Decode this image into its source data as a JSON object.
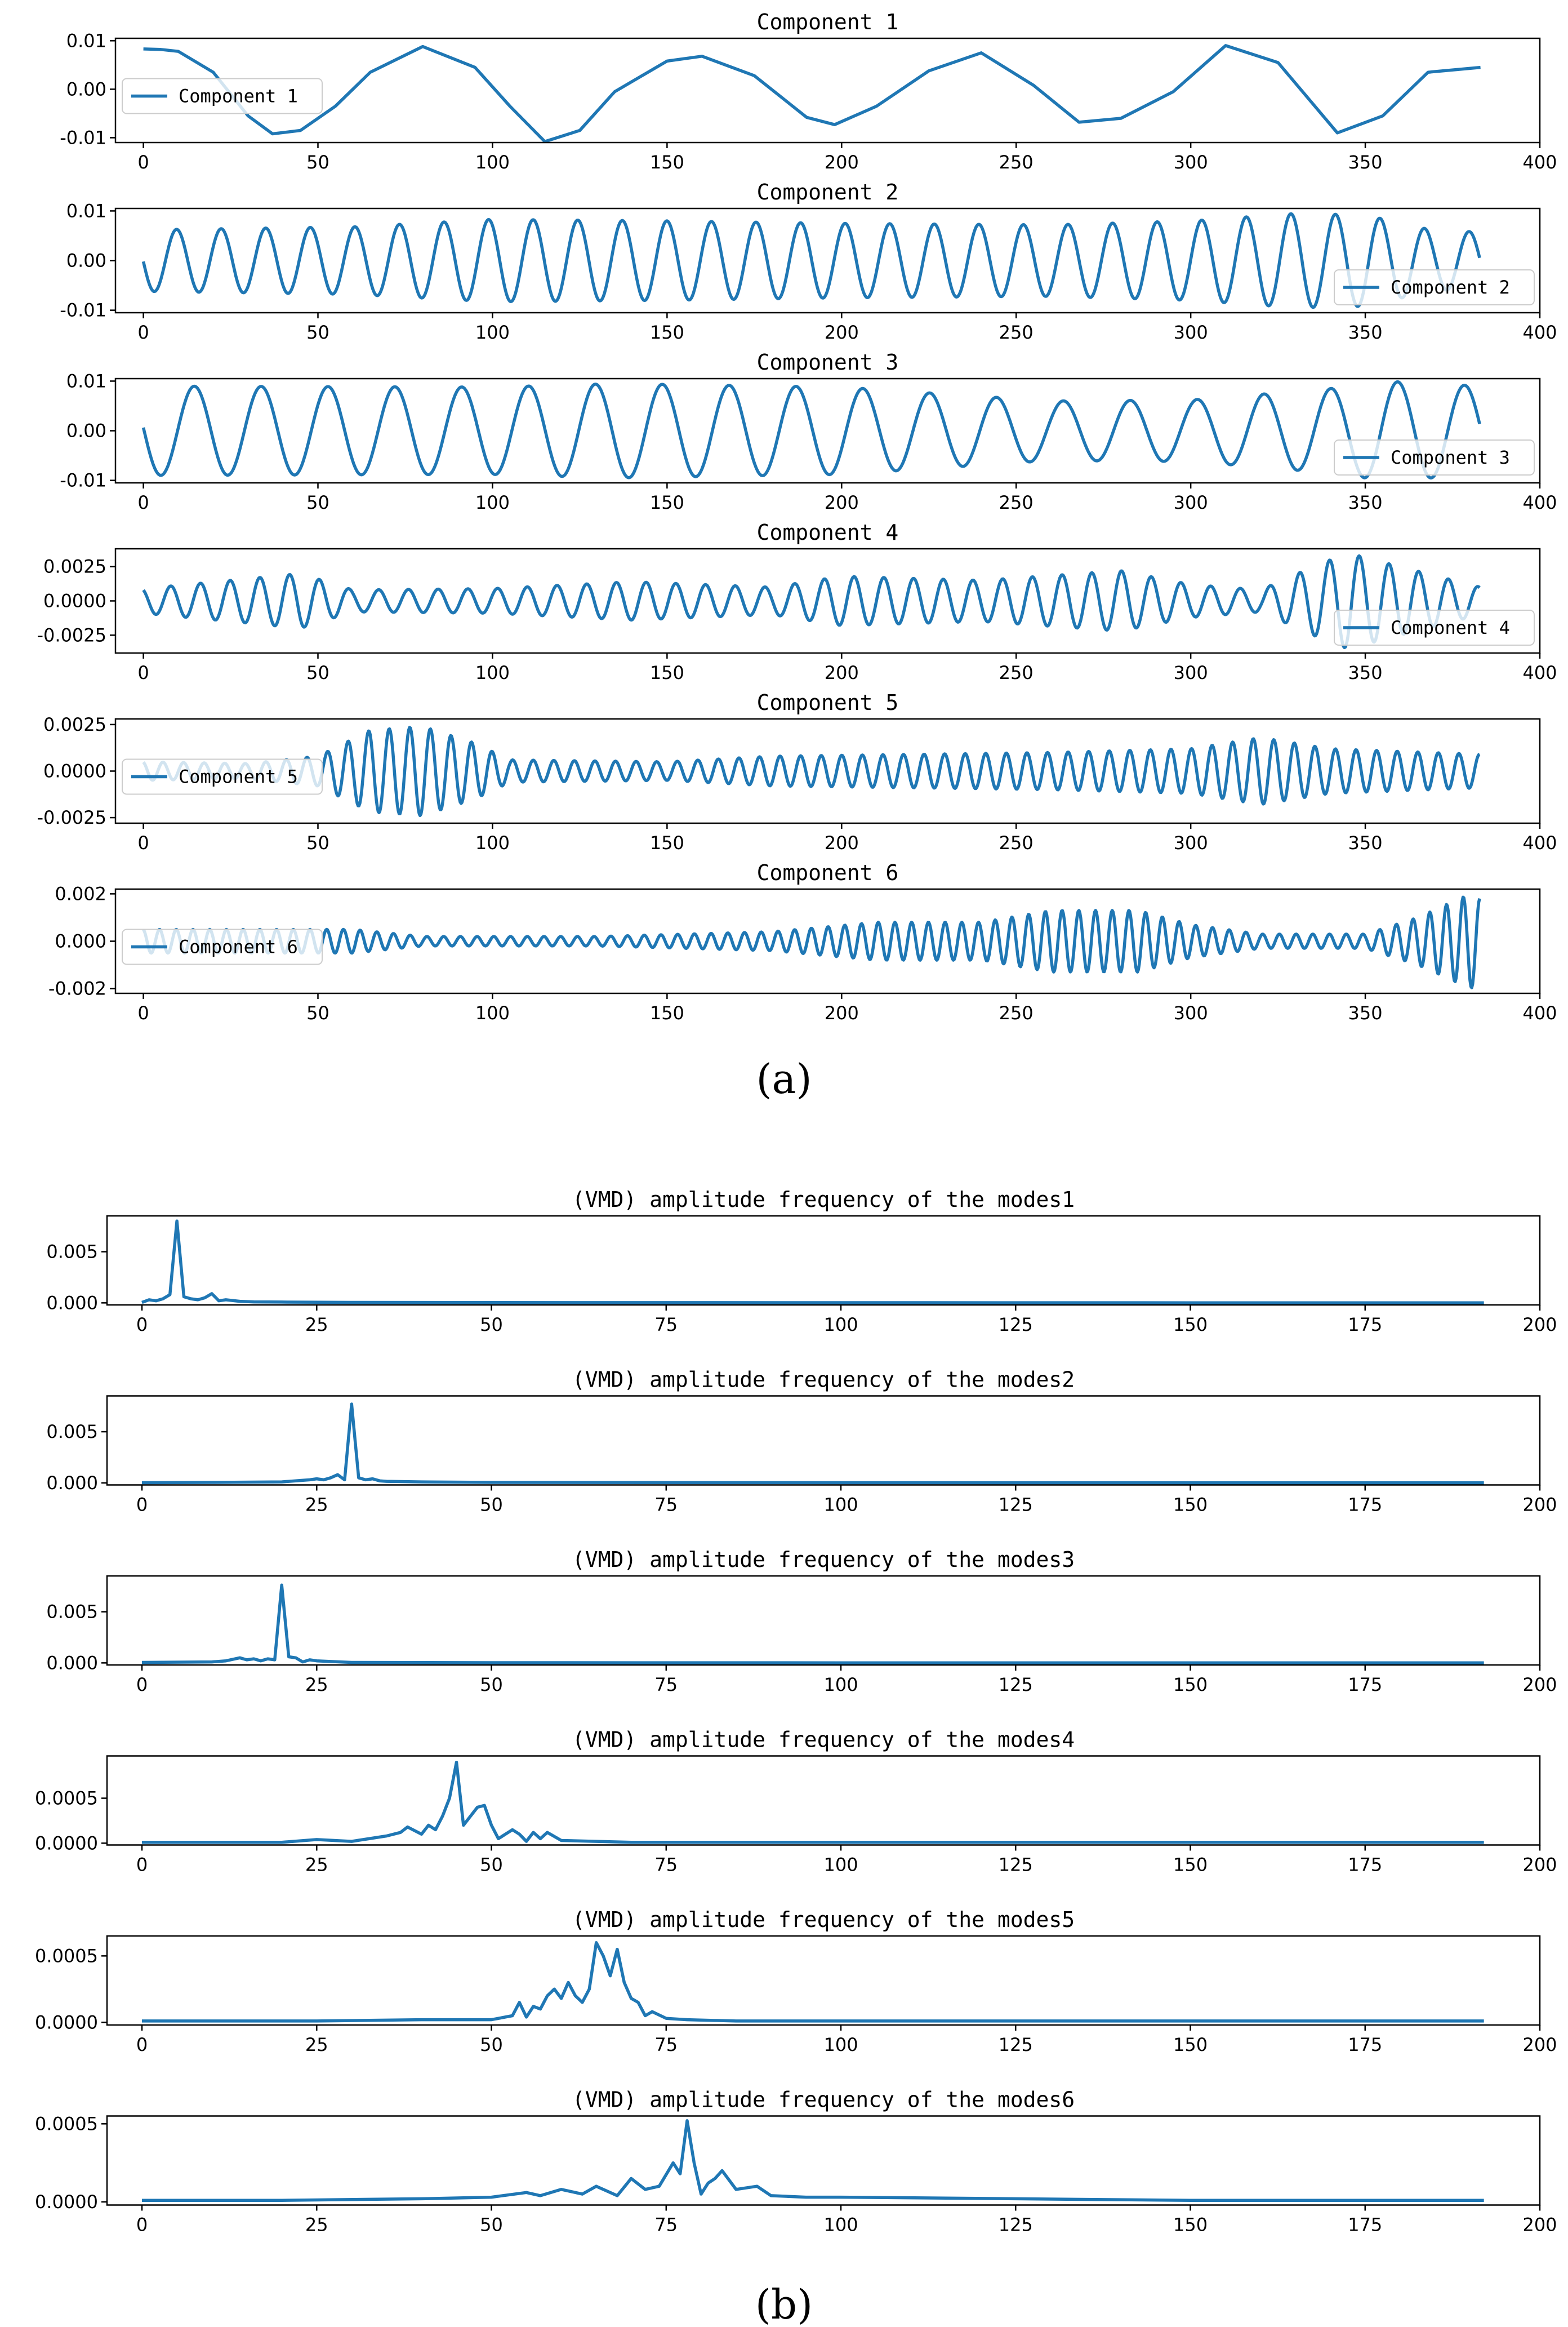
{
  "figure": {
    "label_a": "(a)",
    "label_b": "(b)"
  },
  "colors": {
    "line": "#1f77b4",
    "axis": "#000000"
  },
  "chart_data": [
    {
      "type": "line",
      "group": "a",
      "title": "Component 1",
      "legend": "Component 1",
      "legend_loc": "left",
      "xlim": [
        -8,
        400
      ],
      "ylim": [
        -0.011,
        0.0105
      ],
      "xticks": [
        0,
        50,
        100,
        150,
        200,
        250,
        300,
        350,
        400
      ],
      "xtick_labels": [
        "0",
        "50",
        "100",
        "150",
        "200",
        "250",
        "300",
        "350",
        "400"
      ],
      "yticks": [
        0.01,
        0.0,
        -0.01
      ],
      "ytick_labels": [
        "0.01",
        "0.00",
        "-0.01"
      ],
      "x": [
        0,
        5,
        10,
        20,
        30,
        37,
        45,
        55,
        65,
        80,
        95,
        105,
        115,
        125,
        135,
        150,
        160,
        175,
        190,
        198,
        210,
        225,
        240,
        255,
        268,
        280,
        295,
        310,
        325,
        342,
        355,
        368,
        383
      ],
      "y": [
        0.0083,
        0.0082,
        0.0078,
        0.0035,
        -0.0055,
        -0.0092,
        -0.0085,
        -0.0035,
        0.0035,
        0.0088,
        0.0045,
        -0.0035,
        -0.0108,
        -0.0085,
        -0.0005,
        0.0058,
        0.0068,
        0.0028,
        -0.0058,
        -0.0073,
        -0.0035,
        0.0038,
        0.0075,
        0.0008,
        -0.0068,
        -0.006,
        -0.0005,
        0.009,
        0.0055,
        -0.009,
        -0.0055,
        0.0035,
        0.0045
      ]
    },
    {
      "type": "line",
      "group": "a",
      "title": "Component 2",
      "legend": "Component 2",
      "legend_loc": "right",
      "xlim": [
        -8,
        400
      ],
      "ylim": [
        -0.0105,
        0.0105
      ],
      "xticks": [
        0,
        50,
        100,
        150,
        200,
        250,
        300,
        350,
        400
      ],
      "xtick_labels": [
        "0",
        "50",
        "100",
        "150",
        "200",
        "250",
        "300",
        "350",
        "400"
      ],
      "yticks": [
        0.01,
        0.0,
        -0.01
      ],
      "ytick_labels": [
        "0.01",
        "0.00",
        "-0.01"
      ],
      "signal": {
        "n": 383,
        "components": [
          {
            "freq": 30,
            "phase": 1.6,
            "amp_env": [
              [
                0,
                0.0062
              ],
              [
                60,
                0.0068
              ],
              [
                100,
                0.0083
              ],
              [
                150,
                0.008
              ],
              [
                200,
                0.0075
              ],
              [
                260,
                0.0072
              ],
              [
                300,
                0.008
              ],
              [
                330,
                0.0095
              ],
              [
                350,
                0.0092
              ],
              [
                370,
                0.006
              ],
              [
                383,
                0.0058
              ]
            ]
          }
        ]
      }
    },
    {
      "type": "line",
      "group": "a",
      "title": "Component 3",
      "legend": "Component 3",
      "legend_loc": "right",
      "xlim": [
        -8,
        400
      ],
      "ylim": [
        -0.0105,
        0.0105
      ],
      "xticks": [
        0,
        50,
        100,
        150,
        200,
        250,
        300,
        350,
        400
      ],
      "xtick_labels": [
        "0",
        "50",
        "100",
        "150",
        "200",
        "250",
        "300",
        "350",
        "400"
      ],
      "yticks": [
        0.01,
        0.0,
        -0.01
      ],
      "ytick_labels": [
        "0.01",
        "0.00",
        "-0.01"
      ],
      "signal": {
        "n": 383,
        "components": [
          {
            "freq": 20,
            "phase": 1.5,
            "amp_env": [
              [
                0,
                0.009
              ],
              [
                100,
                0.0088
              ],
              [
                135,
                0.0095
              ],
              [
                200,
                0.0088
              ],
              [
                260,
                0.006
              ],
              [
                300,
                0.0062
              ],
              [
                340,
                0.0085
              ],
              [
                355,
                0.01
              ],
              [
                383,
                0.009
              ]
            ]
          }
        ]
      }
    },
    {
      "type": "line",
      "group": "a",
      "title": "Component 4",
      "legend": "Component 4",
      "legend_loc": "right",
      "xlim": [
        -8,
        400
      ],
      "ylim": [
        -0.0038,
        0.0038
      ],
      "xticks": [
        0,
        50,
        100,
        150,
        200,
        250,
        300,
        350,
        400
      ],
      "xtick_labels": [
        "0",
        "50",
        "100",
        "150",
        "200",
        "250",
        "300",
        "350",
        "400"
      ],
      "yticks": [
        0.0025,
        0.0,
        -0.0025
      ],
      "ytick_labels": [
        "0.0025",
        "0.0000",
        "-0.0025"
      ],
      "signal": {
        "n": 383,
        "components": [
          {
            "freq": 45,
            "phase": 0.5,
            "amp_env": [
              [
                0,
                0.0009
              ],
              [
                25,
                0.0015
              ],
              [
                45,
                0.002
              ],
              [
                60,
                0.0008
              ],
              [
                100,
                0.0009
              ],
              [
                140,
                0.0014
              ],
              [
                180,
                0.001
              ],
              [
                200,
                0.0018
              ],
              [
                240,
                0.0015
              ],
              [
                280,
                0.0022
              ],
              [
                300,
                0.0012
              ],
              [
                320,
                0.0008
              ],
              [
                335,
                0.0025
              ],
              [
                345,
                0.0035
              ],
              [
                360,
                0.0025
              ],
              [
                383,
                0.001
              ]
            ]
          }
        ]
      }
    },
    {
      "type": "line",
      "group": "a",
      "title": "Component 5",
      "legend": "Component 5",
      "legend_loc": "left",
      "xlim": [
        -8,
        400
      ],
      "ylim": [
        -0.0028,
        0.0028
      ],
      "xticks": [
        0,
        50,
        100,
        150,
        200,
        250,
        300,
        350,
        400
      ],
      "xtick_labels": [
        "0",
        "50",
        "100",
        "150",
        "200",
        "250",
        "300",
        "350",
        "400"
      ],
      "yticks": [
        0.0025,
        0.0,
        -0.0025
      ],
      "ytick_labels": [
        "0.0025",
        "0.0000",
        "-0.0025"
      ],
      "signal": {
        "n": 383,
        "components": [
          {
            "freq": 65,
            "phase": 0.3,
            "amp_env": [
              [
                0,
                0.0005
              ],
              [
                30,
                0.0004
              ],
              [
                50,
                0.0008
              ],
              [
                65,
                0.0022
              ],
              [
                80,
                0.0024
              ],
              [
                95,
                0.0015
              ],
              [
                105,
                0.0006
              ],
              [
                150,
                0.0005
              ],
              [
                180,
                0.0008
              ],
              [
                220,
                0.0009
              ],
              [
                260,
                0.001
              ],
              [
                300,
                0.0012
              ],
              [
                320,
                0.0018
              ],
              [
                340,
                0.0012
              ],
              [
                383,
                0.0009
              ]
            ]
          }
        ]
      }
    },
    {
      "type": "line",
      "group": "a",
      "title": "Component 6",
      "legend": "Component 6",
      "legend_loc": "left",
      "xlim": [
        -8,
        400
      ],
      "ylim": [
        -0.0022,
        0.0022
      ],
      "xticks": [
        0,
        50,
        100,
        150,
        200,
        250,
        300,
        350,
        400
      ],
      "xtick_labels": [
        "0",
        "50",
        "100",
        "150",
        "200",
        "250",
        "300",
        "350",
        "400"
      ],
      "yticks": [
        0.002,
        0.0,
        -0.002
      ],
      "ytick_labels": [
        "0.002",
        "0.000",
        "-0.002"
      ],
      "signal": {
        "n": 383,
        "components": [
          {
            "freq": 80,
            "phase": 0.2,
            "amp_env": [
              [
                0,
                0.0005
              ],
              [
                60,
                0.0005
              ],
              [
                80,
                0.0002
              ],
              [
                130,
                0.0002
              ],
              [
                180,
                0.0004
              ],
              [
                210,
                0.0008
              ],
              [
                240,
                0.0008
              ],
              [
                260,
                0.0013
              ],
              [
                285,
                0.0013
              ],
              [
                300,
                0.0007
              ],
              [
                320,
                0.0003
              ],
              [
                350,
                0.0003
              ],
              [
                365,
                0.001
              ],
              [
                380,
                0.002
              ],
              [
                383,
                0.0018
              ]
            ]
          }
        ]
      }
    },
    {
      "type": "line",
      "group": "b",
      "title": "(VMD) amplitude frequency of the modes1",
      "xlim": [
        -5,
        200
      ],
      "ylim": [
        -0.0002,
        0.0085
      ],
      "xticks": [
        0,
        25,
        50,
        75,
        100,
        125,
        150,
        175,
        200
      ],
      "xtick_labels": [
        "0",
        "25",
        "50",
        "75",
        "100",
        "125",
        "150",
        "175",
        "200"
      ],
      "yticks": [
        0.005,
        0.0
      ],
      "ytick_labels": [
        "0.005",
        "0.000"
      ],
      "x": [
        0,
        1,
        2,
        3,
        4,
        5,
        6,
        7,
        8,
        9,
        10,
        11,
        12,
        14,
        16,
        20,
        30,
        50,
        100,
        150,
        192
      ],
      "y": [
        5e-05,
        0.0003,
        0.0002,
        0.0004,
        0.0008,
        0.008,
        0.0006,
        0.0004,
        0.0003,
        0.0005,
        0.0009,
        0.0002,
        0.0003,
        0.00015,
        0.0001,
        8e-05,
        5e-05,
        3e-05,
        2e-05,
        1e-05,
        1e-05
      ]
    },
    {
      "type": "line",
      "group": "b",
      "title": "(VMD) amplitude frequency of the modes2",
      "xlim": [
        -5,
        200
      ],
      "ylim": [
        -0.0002,
        0.0085
      ],
      "xticks": [
        0,
        25,
        50,
        75,
        100,
        125,
        150,
        175,
        200
      ],
      "xtick_labels": [
        "0",
        "25",
        "50",
        "75",
        "100",
        "125",
        "150",
        "175",
        "200"
      ],
      "yticks": [
        0.005,
        0.0
      ],
      "ytick_labels": [
        "0.005",
        "0.000"
      ],
      "x": [
        0,
        10,
        20,
        24,
        25,
        26,
        27,
        28,
        29,
        30,
        31,
        32,
        33,
        34,
        35,
        40,
        50,
        100,
        150,
        192
      ],
      "y": [
        2e-05,
        5e-05,
        0.0001,
        0.0003,
        0.0004,
        0.0003,
        0.0005,
        0.0008,
        0.0003,
        0.0077,
        0.0005,
        0.0003,
        0.0004,
        0.0002,
        0.00015,
        0.0001,
        5e-05,
        2e-05,
        1e-05,
        1e-05
      ]
    },
    {
      "type": "line",
      "group": "b",
      "title": "(VMD) amplitude frequency of the modes3",
      "xlim": [
        -5,
        200
      ],
      "ylim": [
        -0.0002,
        0.0085
      ],
      "xticks": [
        0,
        25,
        50,
        75,
        100,
        125,
        150,
        175,
        200
      ],
      "xtick_labels": [
        "0",
        "25",
        "50",
        "75",
        "100",
        "125",
        "150",
        "175",
        "200"
      ],
      "yticks": [
        0.005,
        0.0
      ],
      "ytick_labels": [
        "0.005",
        "0.000"
      ],
      "x": [
        0,
        10,
        12,
        14,
        15,
        16,
        17,
        18,
        19,
        20,
        21,
        22,
        23,
        24,
        25,
        30,
        50,
        100,
        192
      ],
      "y": [
        5e-05,
        0.0001,
        0.0002,
        0.0005,
        0.0003,
        0.0004,
        0.0002,
        0.0004,
        0.0003,
        0.0076,
        0.0006,
        0.0005,
        0.0001,
        0.0003,
        0.0002,
        5e-05,
        2e-05,
        1e-05,
        1e-05
      ]
    },
    {
      "type": "line",
      "group": "b",
      "title": "(VMD) amplitude frequency of the modes4",
      "xlim": [
        -5,
        200
      ],
      "ylim": [
        -2e-05,
        0.00097
      ],
      "xticks": [
        0,
        25,
        50,
        75,
        100,
        125,
        150,
        175,
        200
      ],
      "xtick_labels": [
        "0",
        "25",
        "50",
        "75",
        "100",
        "125",
        "150",
        "175",
        "200"
      ],
      "yticks": [
        0.0005,
        0.0
      ],
      "ytick_labels": [
        "0.0005",
        "0.0000"
      ],
      "x": [
        0,
        20,
        25,
        30,
        35,
        37,
        38,
        40,
        41,
        42,
        43,
        44,
        45,
        46,
        47,
        48,
        49,
        50,
        51,
        52,
        53,
        54,
        55,
        56,
        57,
        58,
        60,
        70,
        100,
        150,
        192
      ],
      "y": [
        1e-05,
        1e-05,
        4e-05,
        2e-05,
        8e-05,
        0.00012,
        0.00018,
        0.0001,
        0.0002,
        0.00015,
        0.0003,
        0.0005,
        0.0009,
        0.0002,
        0.0003,
        0.0004,
        0.00042,
        0.0002,
        5e-05,
        0.0001,
        0.00015,
        0.0001,
        2e-05,
        0.00012,
        5e-05,
        0.00012,
        3e-05,
        1e-05,
        1e-05,
        1e-05,
        1e-05
      ]
    },
    {
      "type": "line",
      "group": "b",
      "title": "(VMD) amplitude frequency of the modes5",
      "xlim": [
        -5,
        200
      ],
      "ylim": [
        -2e-05,
        0.00065
      ],
      "xticks": [
        0,
        25,
        50,
        75,
        100,
        125,
        150,
        175,
        200
      ],
      "xtick_labels": [
        "0",
        "25",
        "50",
        "75",
        "100",
        "125",
        "150",
        "175",
        "200"
      ],
      "yticks": [
        0.0005,
        0.0
      ],
      "ytick_labels": [
        "0.0005",
        "0.0000"
      ],
      "x": [
        0,
        25,
        40,
        50,
        53,
        54,
        55,
        56,
        57,
        58,
        59,
        60,
        61,
        62,
        63,
        64,
        65,
        66,
        67,
        68,
        69,
        70,
        71,
        72,
        73,
        75,
        78,
        85,
        100,
        150,
        192
      ],
      "y": [
        1e-05,
        1e-05,
        2e-05,
        2e-05,
        5e-05,
        0.00015,
        4e-05,
        0.00012,
        0.0001,
        0.0002,
        0.00025,
        0.00018,
        0.0003,
        0.0002,
        0.00015,
        0.00025,
        0.0006,
        0.0005,
        0.00035,
        0.00055,
        0.0003,
        0.00018,
        0.00015,
        5e-05,
        8e-05,
        3e-05,
        2e-05,
        1e-05,
        1e-05,
        1e-05,
        1e-05
      ]
    },
    {
      "type": "line",
      "group": "b",
      "title": "(VMD) amplitude frequency of the modes6",
      "xlim": [
        -5,
        200
      ],
      "ylim": [
        -2e-05,
        0.00055
      ],
      "xticks": [
        0,
        25,
        50,
        75,
        100,
        125,
        150,
        175,
        200
      ],
      "xtick_labels": [
        "0",
        "25",
        "50",
        "75",
        "100",
        "125",
        "150",
        "175",
        "200"
      ],
      "yticks": [
        0.0005,
        0.0
      ],
      "ytick_labels": [
        "0.0005",
        "0.0000"
      ],
      "x": [
        0,
        20,
        40,
        50,
        55,
        57,
        60,
        63,
        65,
        68,
        70,
        72,
        74,
        76,
        77,
        78,
        79,
        80,
        81,
        82,
        83,
        85,
        88,
        90,
        95,
        100,
        125,
        150,
        192
      ],
      "y": [
        1e-05,
        1e-05,
        2e-05,
        3e-05,
        6e-05,
        4e-05,
        8e-05,
        5e-05,
        0.0001,
        4e-05,
        0.00015,
        8e-05,
        0.0001,
        0.00025,
        0.00018,
        0.00052,
        0.00025,
        5e-05,
        0.00012,
        0.00015,
        0.0002,
        8e-05,
        0.0001,
        4e-05,
        3e-05,
        3e-05,
        2e-05,
        1e-05,
        1e-05
      ]
    }
  ]
}
